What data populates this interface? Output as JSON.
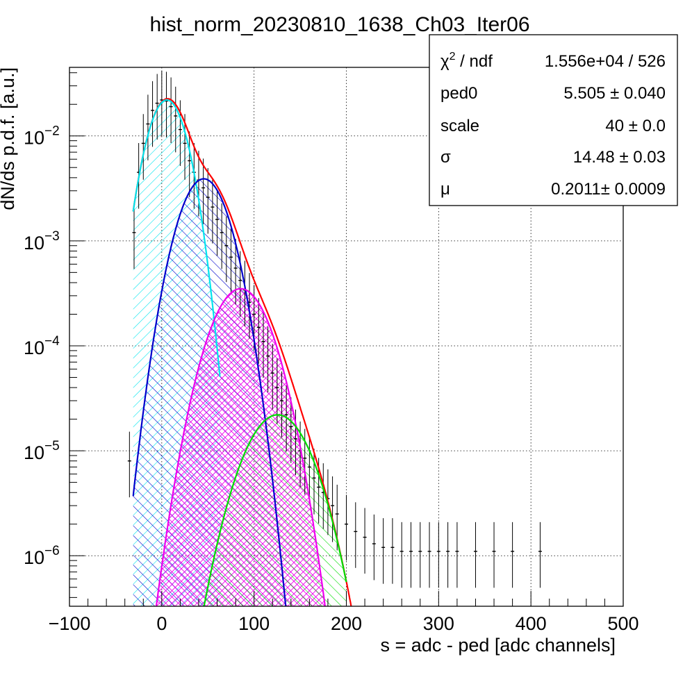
{
  "chart_data": {
    "type": "line",
    "title": "hist_norm_20230810_1638_Ch03_Iter06",
    "xlabel": "s = adc - ped [adc channels]",
    "ylabel": "dN/ds p.d.f. [a.u.]",
    "xlim": [
      -100,
      500
    ],
    "ylim": [
      3.3e-07,
      0.045
    ],
    "ylog": true,
    "grid": true,
    "x_ticks": [
      {
        "value": -100,
        "label": "−100"
      },
      {
        "value": 0,
        "label": "0"
      },
      {
        "value": 100,
        "label": "100"
      },
      {
        "value": 200,
        "label": "200"
      },
      {
        "value": 300,
        "label": "300"
      },
      {
        "value": 400,
        "label": "400"
      },
      {
        "value": 500,
        "label": "500"
      }
    ],
    "y_ticks": [
      {
        "value": 0.01,
        "base": "10",
        "exp": "−2"
      },
      {
        "value": 0.001,
        "base": "10",
        "exp": "−3"
      },
      {
        "value": 0.0001,
        "base": "10",
        "exp": "−4"
      },
      {
        "value": 1e-05,
        "base": "10",
        "exp": "−5"
      },
      {
        "value": 1e-06,
        "base": "10",
        "exp": "−6"
      }
    ],
    "histogram": {
      "x": [
        -35,
        -30,
        -25,
        -20,
        -15,
        -10,
        -5,
        0,
        5,
        10,
        15,
        20,
        25,
        30,
        35,
        40,
        45,
        50,
        55,
        60,
        65,
        70,
        75,
        80,
        85,
        90,
        95,
        100,
        105,
        110,
        115,
        120,
        125,
        130,
        135,
        140,
        145,
        150,
        155,
        160,
        165,
        170,
        175,
        180,
        185,
        190,
        200,
        210,
        220,
        230,
        240,
        250,
        260,
        270,
        280,
        290,
        300,
        310,
        320,
        340,
        360,
        380,
        410
      ],
      "y": [
        8e-06,
        0.0012,
        0.0045,
        0.0085,
        0.013,
        0.0175,
        0.0205,
        0.022,
        0.0215,
        0.019,
        0.0155,
        0.0115,
        0.0085,
        0.0058,
        0.0045,
        0.0038,
        0.0032,
        0.0026,
        0.0021,
        0.0016,
        0.0012,
        0.0009,
        0.0007,
        0.00055,
        0.00042,
        0.00034,
        0.00026,
        0.0002,
        0.00015,
        0.00011,
        8e-05,
        5.5e-05,
        4e-05,
        3e-05,
        2.2e-05,
        1.7e-05,
        1.3e-05,
        1e-05,
        8.5e-06,
        7e-06,
        5.5e-06,
        4.5e-06,
        4e-06,
        3.5e-06,
        3e-06,
        2.5e-06,
        2e-06,
        1.7e-06,
        1.5e-06,
        1.3e-06,
        1.2e-06,
        1.2e-06,
        1.1e-06,
        1.1e-06,
        1.1e-06,
        1.1e-06,
        1.1e-06,
        1.1e-06,
        1.1e-06,
        1.1e-06,
        1.1e-06,
        1.1e-06,
        1.1e-06
      ],
      "color": "#000000"
    },
    "series": [
      {
        "components": [
          {
            "a": 0.022,
            "mu": 5.5,
            "sigma": 16.5
          }
        ],
        "x_range": [
          -31,
          320
        ],
        "color": "#ff0000",
        "role": "total"
      },
      {
        "components": [
          {
            "a": 0.022,
            "mu": 5.5,
            "sigma": 16.5
          }
        ],
        "x_range": [
          -31,
          63
        ],
        "color": "#00e5ee",
        "role": "component"
      },
      {
        "components": [
          {
            "a": 0.0039,
            "mu": 45.5,
            "sigma": 20.5
          }
        ],
        "x_range": [
          -31,
          200
        ],
        "color": "#0000cc",
        "role": "component"
      },
      {
        "components": [
          {
            "a": 0.00035,
            "mu": 85.5,
            "sigma": 24.5
          }
        ],
        "x_range": [
          -31,
          200
        ],
        "color": "#ee00ee",
        "role": "component"
      },
      {
        "components": [
          {
            "a": 2.2e-05,
            "mu": 125.5,
            "sigma": 27.5
          }
        ],
        "x_range": [
          -31,
          200
        ],
        "color": "#00dd00",
        "role": "component"
      }
    ],
    "legend_position": "top-right",
    "stats": [
      {
        "name": "χ",
        "name_sup": "2",
        "name_rest": " / ndf",
        "value": "1.556e+04 / 526"
      },
      {
        "name": "ped0",
        "value": "5.505 ± 0.040"
      },
      {
        "name": "scale",
        "value": "40 ± 0.0"
      },
      {
        "name": "σ",
        "value": "14.48 ± 0.03"
      },
      {
        "name": "μ",
        "value": "0.2011± 0.0009"
      }
    ]
  }
}
